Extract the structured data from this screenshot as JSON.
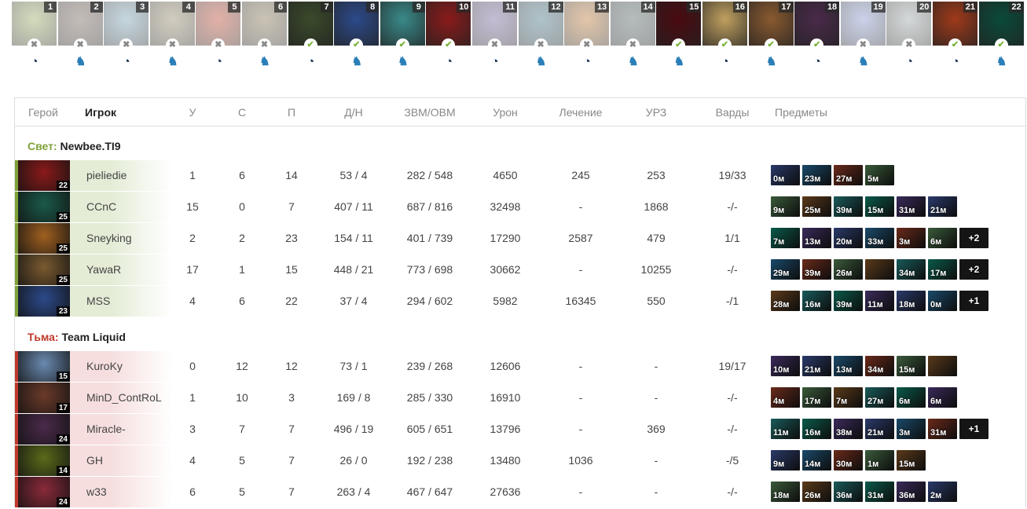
{
  "draft": [
    {
      "n": "1",
      "state": "ban",
      "team": "liquid",
      "color": "#9fb06a"
    },
    {
      "n": "2",
      "state": "ban",
      "team": "newbee",
      "color": "#7a6a60"
    },
    {
      "n": "3",
      "state": "ban",
      "team": "liquid",
      "color": "#7fa6b8"
    },
    {
      "n": "4",
      "state": "ban",
      "team": "newbee",
      "color": "#9a8f70"
    },
    {
      "n": "5",
      "state": "ban",
      "team": "liquid",
      "color": "#c0503a"
    },
    {
      "n": "6",
      "state": "ban",
      "team": "newbee",
      "color": "#8a7a5a"
    },
    {
      "n": "7",
      "state": "pick",
      "team": "liquid",
      "color": "#3a4a2a"
    },
    {
      "n": "8",
      "state": "pick",
      "team": "newbee",
      "color": "#2c4a8a"
    },
    {
      "n": "9",
      "state": "pick",
      "team": "newbee",
      "color": "#3a8a8a"
    },
    {
      "n": "10",
      "state": "pick",
      "team": "liquid",
      "color": "#8a1a1a"
    },
    {
      "n": "11",
      "state": "ban",
      "team": "liquid",
      "color": "#7a6aa0"
    },
    {
      "n": "12",
      "state": "ban",
      "team": "newbee",
      "color": "#4a7a8a"
    },
    {
      "n": "13",
      "state": "ban",
      "team": "liquid",
      "color": "#c08040"
    },
    {
      "n": "14",
      "state": "ban",
      "team": "newbee",
      "color": "#5a6a6a"
    },
    {
      "n": "15",
      "state": "pick",
      "team": "newbee",
      "color": "#4a0a10"
    },
    {
      "n": "16",
      "state": "pick",
      "team": "liquid",
      "color": "#c0a060"
    },
    {
      "n": "17",
      "state": "pick",
      "team": "newbee",
      "color": "#8a5a30"
    },
    {
      "n": "18",
      "state": "pick",
      "team": "liquid",
      "color": "#4a2a4a"
    },
    {
      "n": "19",
      "state": "ban",
      "team": "newbee",
      "color": "#8a9ad0"
    },
    {
      "n": "20",
      "state": "ban",
      "team": "liquid",
      "color": "#a0a8a8"
    },
    {
      "n": "21",
      "state": "pick",
      "team": "liquid",
      "color": "#a03a1a"
    },
    {
      "n": "22",
      "state": "pick",
      "team": "newbee",
      "color": "#0a4a3a"
    }
  ],
  "logos": {
    "liquid": "◔",
    "newbee": "♞"
  },
  "headers": {
    "hero": "Герой",
    "player": "Игрок",
    "kills": "У",
    "deaths": "С",
    "assists": "П",
    "lhdn": "Д/Н",
    "gpmxpm": "ЗВМ/ОВМ",
    "damage": "Урон",
    "healing": "Лечение",
    "building": "УРЗ",
    "wards": "Варды",
    "items": "Предметы"
  },
  "colors": {
    "radiant": "#7ea13a",
    "dire": "#c0392b"
  },
  "teams": [
    {
      "side": "Свет:",
      "name": "Newbee.TI9",
      "type": "radiant",
      "players": [
        {
          "hero_color": "#8a1a1a",
          "level": "22",
          "name": "pieliedie",
          "k": "1",
          "d": "6",
          "a": "14",
          "lhdn": "53 / 4",
          "gx": "282 / 548",
          "dmg": "4650",
          "heal": "245",
          "bld": "253",
          "wards": "19/33",
          "items": [
            "0м",
            "23м",
            "27м",
            "5м"
          ]
        },
        {
          "hero_color": "#1a5a4a",
          "level": "25",
          "name": "CCnC",
          "k": "15",
          "d": "0",
          "a": "7",
          "lhdn": "407 / 11",
          "gx": "687 / 816",
          "dmg": "32498",
          "heal": "-",
          "bld": "1868",
          "wards": "-/-",
          "items": [
            "9м",
            "25м",
            "39м",
            "15м",
            "31м",
            "21м"
          ]
        },
        {
          "hero_color": "#a06020",
          "level": "25",
          "name": "Sneyking",
          "k": "2",
          "d": "2",
          "a": "23",
          "lhdn": "154 / 11",
          "gx": "401 / 739",
          "dmg": "17290",
          "heal": "2587",
          "bld": "479",
          "wards": "1/1",
          "items": [
            "7м",
            "13м",
            "20м",
            "33м",
            "3м",
            "6м",
            "+2"
          ]
        },
        {
          "hero_color": "#7a5a30",
          "level": "25",
          "name": "YawaR",
          "k": "17",
          "d": "1",
          "a": "15",
          "lhdn": "448 / 21",
          "gx": "773 / 698",
          "dmg": "30662",
          "heal": "-",
          "bld": "10255",
          "wards": "-/-",
          "items": [
            "29м",
            "39м",
            "26м",
            "",
            "34м",
            "17м",
            "+2"
          ]
        },
        {
          "hero_color": "#2c4a8a",
          "level": "23",
          "name": "MSS",
          "k": "4",
          "d": "6",
          "a": "22",
          "lhdn": "37 / 4",
          "gx": "294 / 602",
          "dmg": "5982",
          "heal": "16345",
          "bld": "550",
          "wards": "-/1",
          "items": [
            "28м",
            "16м",
            "39м",
            "11м",
            "18м",
            "0м",
            "+1"
          ]
        }
      ]
    },
    {
      "side": "Тьма:",
      "name": "Team Liquid",
      "type": "dire",
      "players": [
        {
          "hero_color": "#6a8ab0",
          "level": "15",
          "name": "KuroKy",
          "k": "0",
          "d": "12",
          "a": "12",
          "lhdn": "73 / 1",
          "gx": "239 / 268",
          "dmg": "12606",
          "heal": "-",
          "bld": "-",
          "wards": "19/17",
          "items": [
            "10м",
            "21м",
            "13м",
            "34м",
            "15м",
            ""
          ]
        },
        {
          "hero_color": "#6a3a2a",
          "level": "17",
          "name": "MinD_ContRoL",
          "k": "1",
          "d": "10",
          "a": "3",
          "lhdn": "169 / 8",
          "gx": "285 / 330",
          "dmg": "16910",
          "heal": "-",
          "bld": "-",
          "wards": "-/-",
          "items": [
            "4м",
            "17м",
            "7м",
            "27м",
            "6м",
            "6м"
          ]
        },
        {
          "hero_color": "#4a2a4a",
          "level": "24",
          "name": "Miracle-",
          "k": "3",
          "d": "7",
          "a": "7",
          "lhdn": "496 / 19",
          "gx": "605 / 651",
          "dmg": "13796",
          "heal": "-",
          "bld": "369",
          "wards": "-/-",
          "items": [
            "11м",
            "16м",
            "38м",
            "21м",
            "3м",
            "31м",
            "+1"
          ]
        },
        {
          "hero_color": "#5a6a1a",
          "level": "14",
          "name": "GH",
          "k": "4",
          "d": "5",
          "a": "7",
          "lhdn": "26 / 0",
          "gx": "192 / 238",
          "dmg": "13480",
          "heal": "1036",
          "bld": "-",
          "wards": "-/5",
          "items": [
            "9м",
            "14м",
            "30м",
            "1м",
            "15м"
          ]
        },
        {
          "hero_color": "#8a2a3a",
          "level": "24",
          "name": "w33",
          "k": "6",
          "d": "5",
          "a": "7",
          "lhdn": "263 / 4",
          "gx": "467 / 647",
          "dmg": "27636",
          "heal": "-",
          "bld": "-",
          "wards": "-/-",
          "items": [
            "18м",
            "26м",
            "36м",
            "31м",
            "36м",
            "2м"
          ]
        }
      ]
    }
  ]
}
